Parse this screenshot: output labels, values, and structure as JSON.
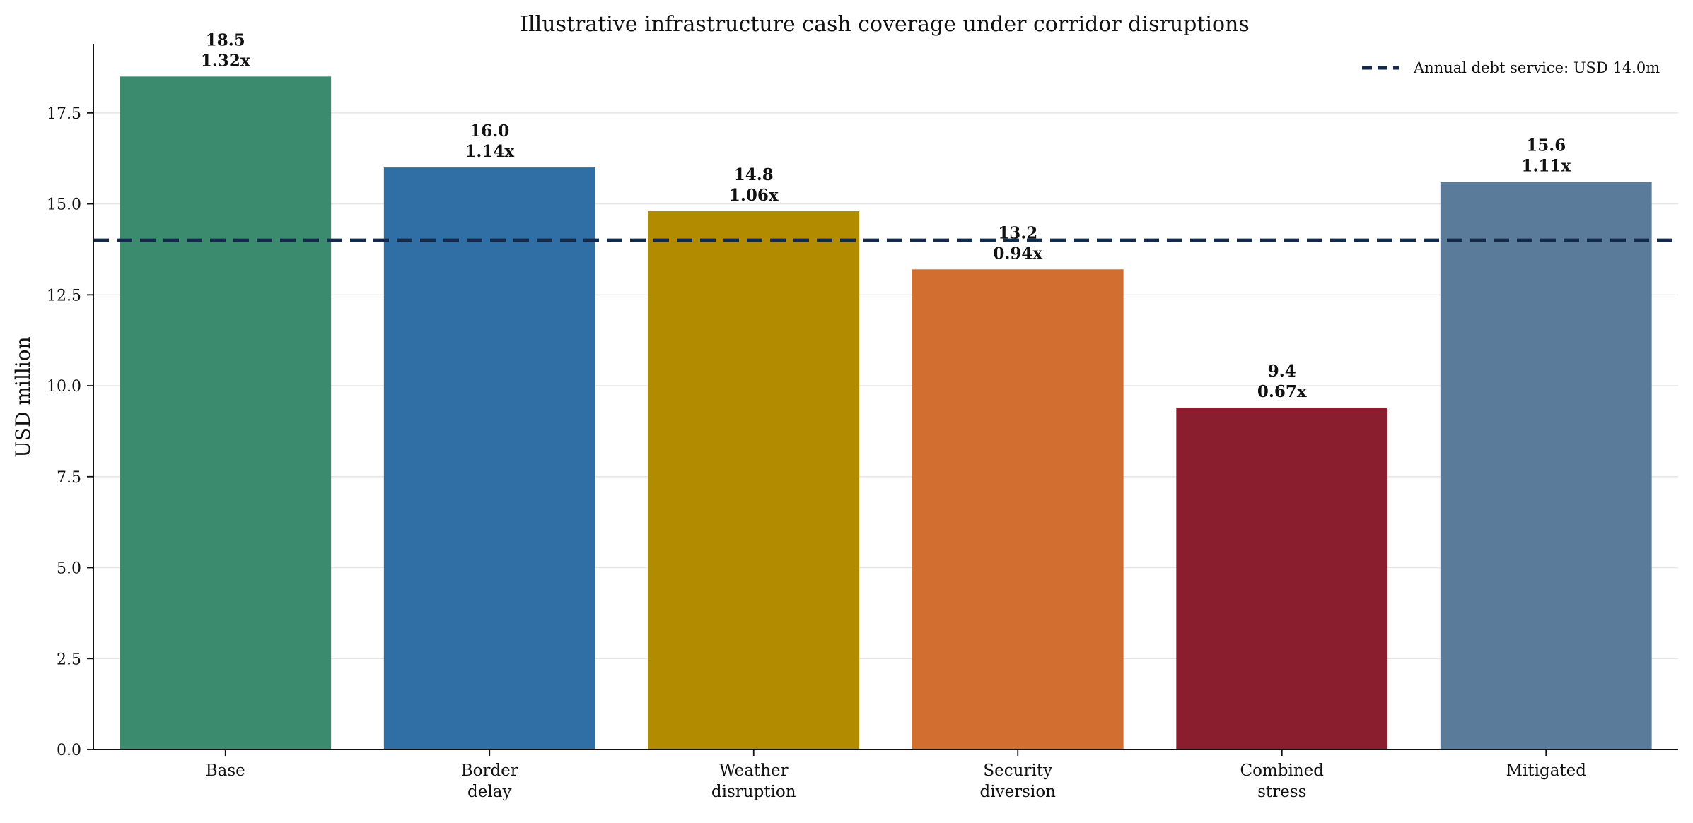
{
  "chart_data": {
    "type": "bar",
    "title": "Illustrative infrastructure cash coverage under corridor disruptions",
    "xlabel": "",
    "ylabel": "USD million",
    "ylim": [
      0,
      19.4
    ],
    "yticks": [
      "0.0",
      "2.5",
      "5.0",
      "7.5",
      "10.0",
      "12.5",
      "15.0",
      "17.5"
    ],
    "grid": "horizontal",
    "categories": [
      [
        "Base"
      ],
      [
        "Border",
        "delay"
      ],
      [
        "Weather",
        "disruption"
      ],
      [
        "Security",
        "diversion"
      ],
      [
        "Combined",
        "stress"
      ],
      [
        "Mitigated"
      ]
    ],
    "values": [
      18.5,
      16.0,
      14.8,
      13.2,
      9.4,
      15.6
    ],
    "value_labels": [
      "18.5",
      "16.0",
      "14.8",
      "13.2",
      "9.4",
      "15.6"
    ],
    "coverage_labels": [
      "1.32x",
      "1.14x",
      "1.06x",
      "0.94x",
      "0.67x",
      "1.11x"
    ],
    "colors": [
      "#3b8c6e",
      "#2f6fa6",
      "#b38b00",
      "#d26f30",
      "#8a1e2e",
      "#5a7c9a"
    ],
    "reference_line": {
      "value": 14.0,
      "label": "Annual debt service: USD 14.0m",
      "color": "#142a4a",
      "style": "dashed"
    },
    "legend_position": "top-right"
  }
}
